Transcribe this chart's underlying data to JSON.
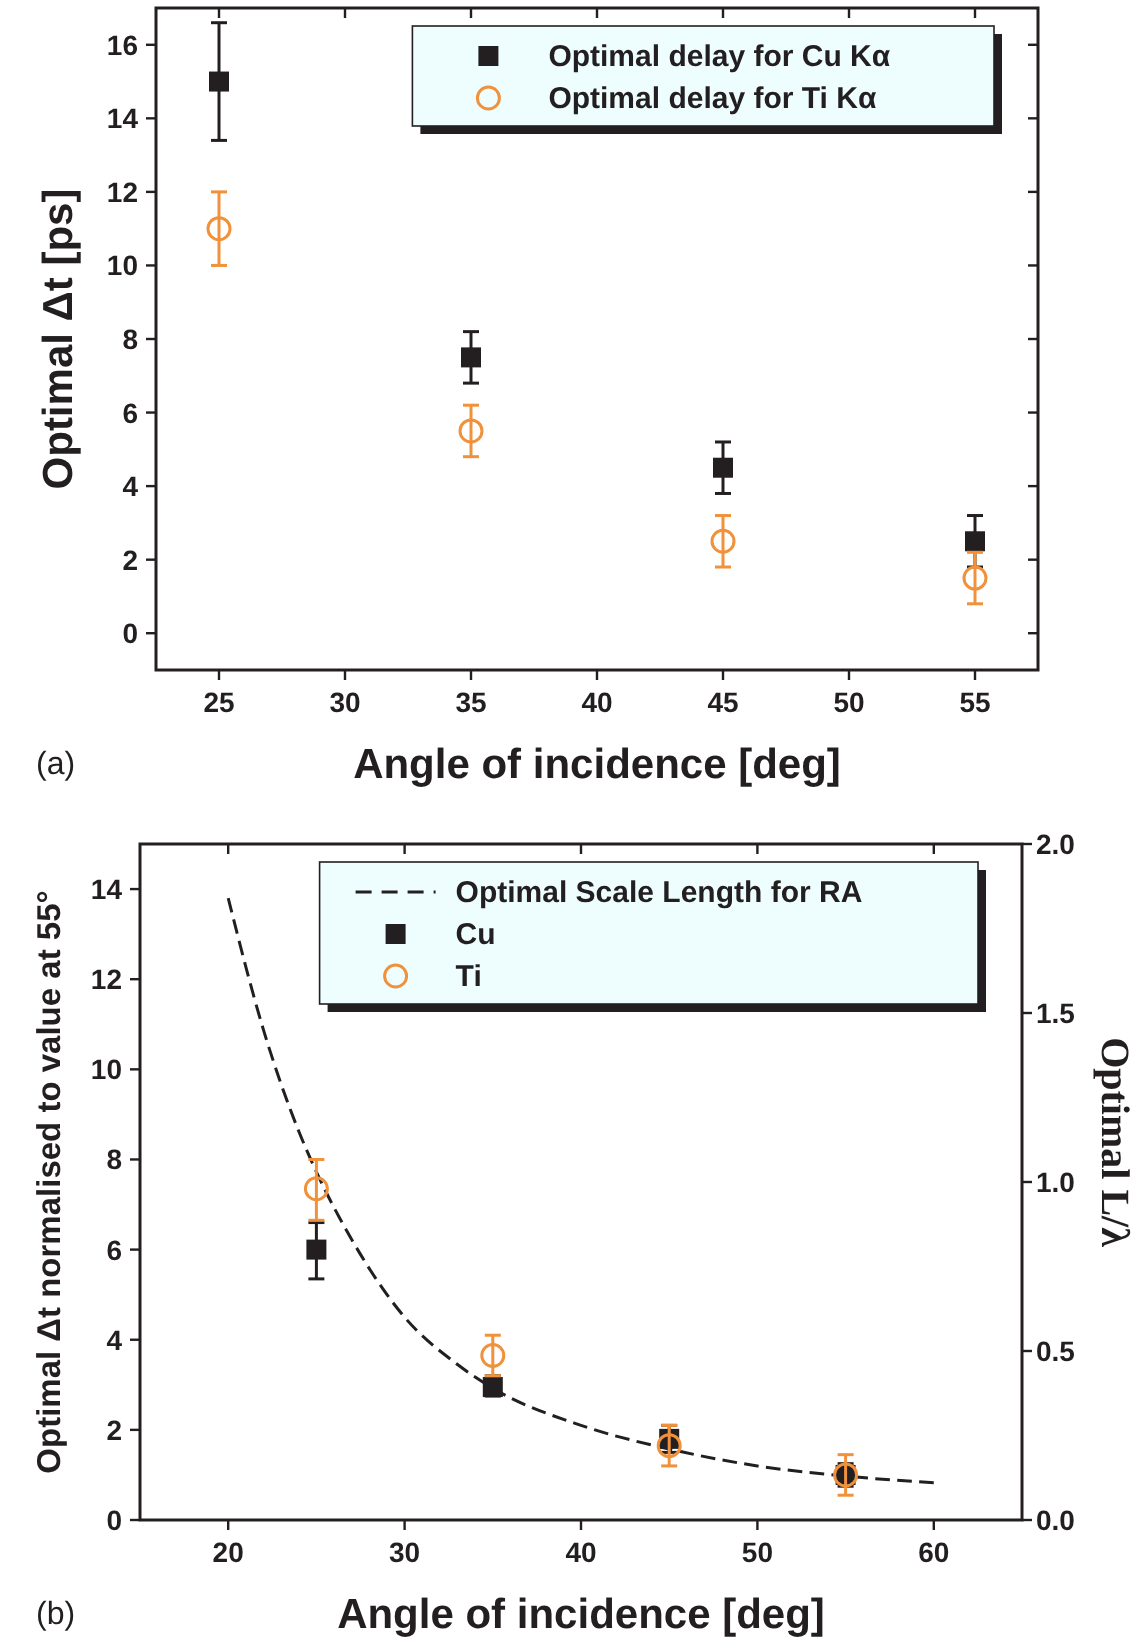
{
  "chart_data": [
    {
      "type": "scatter",
      "xlabel": "Angle of incidence [deg]",
      "ylabel": "Optimal Δt [ps]",
      "annotations": [
        "(a)"
      ],
      "x": [
        25,
        35,
        45,
        55
      ],
      "xlim": [
        22.5,
        57.5
      ],
      "xticks": [
        25,
        30,
        35,
        40,
        45,
        50,
        55
      ],
      "ylim": [
        -1,
        17
      ],
      "yticks": [
        0,
        2,
        4,
        6,
        8,
        10,
        12,
        14,
        16
      ],
      "legend": "top right",
      "grid": false,
      "series": [
        {
          "name": "Optimal delay for Cu Kα",
          "color": "#231f20",
          "marker": "square",
          "values": [
            15,
            7.5,
            4.5,
            2.5
          ],
          "errors": [
            [
              13.4,
              16.6
            ],
            [
              6.8,
              8.2
            ],
            [
              3.8,
              5.2
            ],
            [
              1.8,
              3.2
            ]
          ]
        },
        {
          "name": "Optimal delay for Ti Kα",
          "color": "#f0913c",
          "marker": "circle",
          "values": [
            11,
            5.5,
            2.5,
            1.5
          ],
          "errors": [
            [
              10,
              12
            ],
            [
              4.8,
              6.2
            ],
            [
              1.8,
              3.2
            ],
            [
              0.8,
              2.2
            ]
          ]
        }
      ]
    },
    {
      "type": "scatter",
      "xlabel": "Angle of incidence [deg]",
      "ylabel": "Optimal Δt normalised to value at 55°",
      "y2label": "Optimal L/λ",
      "annotations": [
        "(b)"
      ],
      "xlim": [
        15,
        65
      ],
      "xticks": [
        20,
        30,
        40,
        50,
        60
      ],
      "ylim": [
        0,
        15
      ],
      "yticks": [
        0,
        2,
        4,
        6,
        8,
        10,
        12,
        14
      ],
      "y2lim": [
        0,
        2.0
      ],
      "y2ticks": [
        {
          "value": 0,
          "label": "0.0"
        },
        0.5,
        {
          "value": 1,
          "label": "1.0"
        },
        1.5,
        {
          "value": 2,
          "label": "2.0"
        }
      ],
      "legend": "top right",
      "grid": false,
      "series": [
        {
          "name": "Optimal Scale Length for RA",
          "type": "line",
          "axis": "y2",
          "color": "#231f20",
          "line_style": "dashed",
          "marker": "none",
          "x": [
            20,
            22,
            24,
            25,
            27,
            30,
            33,
            35,
            40,
            45,
            50,
            55,
            60
          ],
          "values": [
            1.84,
            1.45,
            1.15,
            1.03,
            0.83,
            0.6,
            0.46,
            0.39,
            0.28,
            0.21,
            0.16,
            0.13,
            0.11
          ]
        },
        {
          "name": "Cu",
          "color": "#231f20",
          "marker": "square",
          "x": [
            25,
            35,
            45,
            55
          ],
          "values": [
            6.0,
            2.95,
            1.8,
            1.0
          ],
          "errors": [
            [
              5.35,
              6.6
            ],
            [
              2.75,
              3.2
            ],
            [
              1.5,
              2.1
            ],
            [
              0.75,
              1.25
            ]
          ]
        },
        {
          "name": "Ti",
          "color": "#f0913c",
          "marker": "circle",
          "x": [
            25,
            35,
            45,
            55
          ],
          "values": [
            7.35,
            3.65,
            1.65,
            1.0
          ],
          "errors": [
            [
              6.65,
              8.0
            ],
            [
              3.2,
              4.1
            ],
            [
              1.2,
              2.1
            ],
            [
              0.55,
              1.45
            ]
          ]
        }
      ]
    }
  ]
}
